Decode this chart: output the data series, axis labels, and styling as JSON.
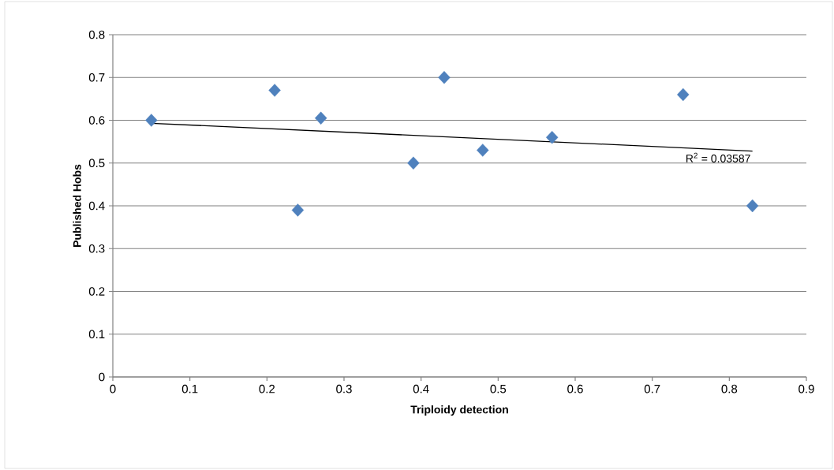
{
  "chart_data": {
    "type": "scatter",
    "xlabel": "Triploidy detection",
    "ylabel": "Published Hobs",
    "xlim": [
      0,
      0.9
    ],
    "ylim": [
      0,
      0.8
    ],
    "xticks": [
      0,
      0.1,
      0.2,
      0.3,
      0.4,
      0.5,
      0.6,
      0.7,
      0.8,
      0.9
    ],
    "yticks": [
      0,
      0.1,
      0.2,
      0.3,
      0.4,
      0.5,
      0.6,
      0.7,
      0.8
    ],
    "grid": "y",
    "series": [
      {
        "marker": "diamond",
        "color": "#4f81bd",
        "x": [
          0.05,
          0.21,
          0.24,
          0.27,
          0.39,
          0.43,
          0.48,
          0.57,
          0.74,
          0.83
        ],
        "values": [
          0.6,
          0.67,
          0.39,
          0.605,
          0.5,
          0.7,
          0.53,
          0.56,
          0.66,
          0.4
        ]
      },
      {
        "type": "line",
        "marker": "none",
        "color": "#000000",
        "x": [
          0.05,
          0.83
        ],
        "values": [
          0.593,
          0.528
        ]
      }
    ],
    "annotations": [
      "R$^{2}$ = 0.03587"
    ]
  }
}
